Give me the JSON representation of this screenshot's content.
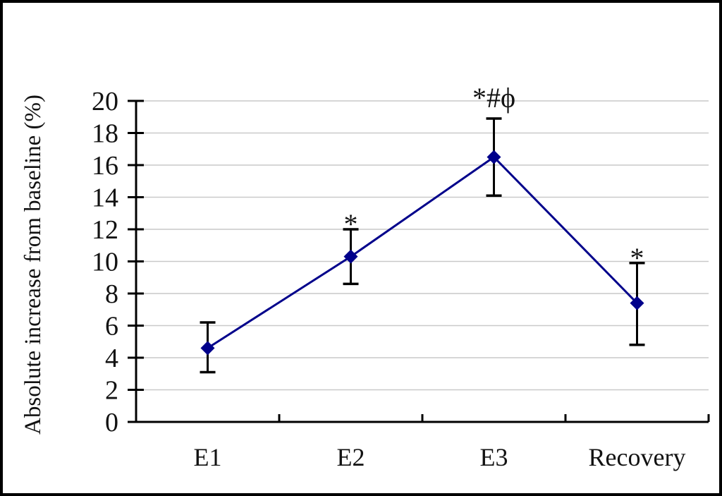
{
  "figure": {
    "background": "#ffffff",
    "border_color": "#000000"
  },
  "chart_data": {
    "type": "line",
    "title": "",
    "xlabel": "",
    "ylabel": "Absolute increase from baseline (%)",
    "categories": [
      "E1",
      "E2",
      "E3",
      "Recovery"
    ],
    "series": [
      {
        "name": "absolute-increase",
        "values": [
          4.6,
          10.3,
          16.5,
          7.4
        ],
        "error_upper": [
          6.2,
          12.0,
          18.9,
          9.9
        ],
        "error_lower": [
          3.1,
          8.6,
          14.1,
          4.8
        ],
        "color": "#00008b",
        "marker": "diamond"
      }
    ],
    "annotations": [
      {
        "category": "E2",
        "text": "*"
      },
      {
        "category": "E3",
        "text": "*#ϕ"
      },
      {
        "category": "Recovery",
        "text": "*"
      }
    ],
    "ylim": [
      0,
      20
    ],
    "ytick_step": 2,
    "yticks": [
      0,
      2,
      4,
      6,
      8,
      10,
      12,
      14,
      16,
      18,
      20
    ],
    "grid": true,
    "grid_color": "#c9c9c9",
    "axis_color": "#000000",
    "error_bar_color": "#000000",
    "legend": "none"
  }
}
